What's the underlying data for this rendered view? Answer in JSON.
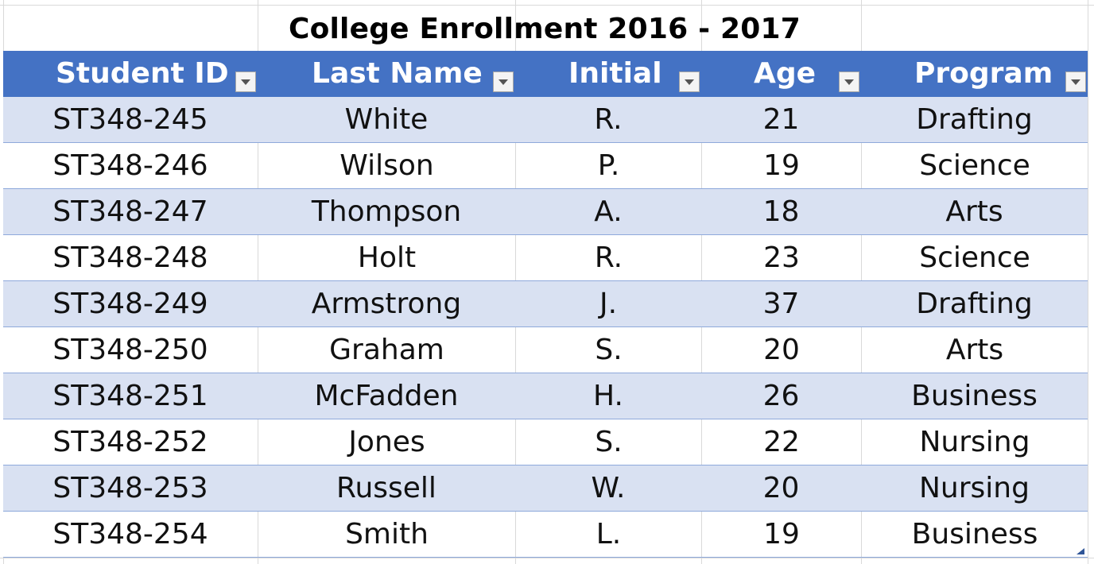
{
  "sheet": {
    "title": "College Enrollment 2016 - 2017",
    "colors": {
      "header_fill": "#4472c4",
      "band_fill": "#d9e1f2",
      "row_border": "#8ea9db",
      "grid": "#d9d9d9"
    }
  },
  "table": {
    "columns": [
      {
        "label": "Student ID",
        "filter_icon": "dropdown-arrow-icon"
      },
      {
        "label": "Last Name",
        "filter_icon": "dropdown-arrow-icon"
      },
      {
        "label": "Initial",
        "filter_icon": "dropdown-arrow-icon"
      },
      {
        "label": "Age",
        "filter_icon": "dropdown-arrow-icon"
      },
      {
        "label": "Program",
        "filter_icon": "dropdown-arrow-icon"
      }
    ],
    "rows": [
      [
        "ST348-245",
        "White",
        "R.",
        "21",
        "Drafting"
      ],
      [
        "ST348-246",
        "Wilson",
        "P.",
        "19",
        "Science"
      ],
      [
        "ST348-247",
        "Thompson",
        "A.",
        "18",
        "Arts"
      ],
      [
        "ST348-248",
        "Holt",
        "R.",
        "23",
        "Science"
      ],
      [
        "ST348-249",
        "Armstrong",
        "J.",
        "37",
        "Drafting"
      ],
      [
        "ST348-250",
        "Graham",
        "S.",
        "20",
        "Arts"
      ],
      [
        "ST348-251",
        "McFadden",
        "H.",
        "26",
        "Business"
      ],
      [
        "ST348-252",
        "Jones",
        "S.",
        "22",
        "Nursing"
      ],
      [
        "ST348-253",
        "Russell",
        "W.",
        "20",
        "Nursing"
      ],
      [
        "ST348-254",
        "Smith",
        "L.",
        "19",
        "Business"
      ]
    ]
  }
}
